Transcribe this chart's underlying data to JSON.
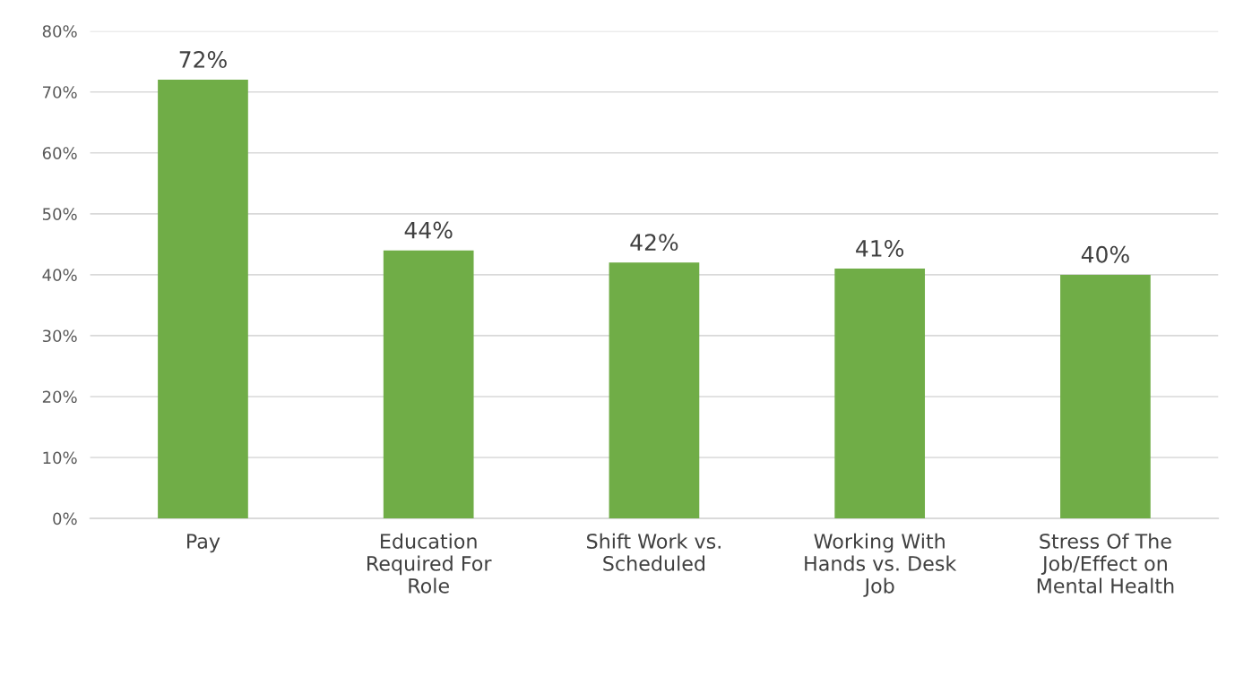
{
  "chart_data": {
    "type": "bar",
    "categories": [
      "Pay",
      "Education\nRequired For\nRole",
      "Shift Work vs.\nScheduled",
      "Working With\nHands vs. Desk\nJob",
      "Stress Of The\nJob/Effect on\nMental Health"
    ],
    "values": [
      72,
      44,
      42,
      41,
      40
    ],
    "value_labels": [
      "72%",
      "44%",
      "42%",
      "41%",
      "40%"
    ],
    "color": "#70ad47",
    "ylim": [
      0,
      80
    ],
    "yticks": [
      {
        "value": 0,
        "label": "0%"
      },
      {
        "value": 10,
        "label": "10%"
      },
      {
        "value": 20,
        "label": "20%"
      },
      {
        "value": 30,
        "label": "30%"
      },
      {
        "value": 40,
        "label": "40%"
      },
      {
        "value": 50,
        "label": "50%"
      },
      {
        "value": 60,
        "label": "60%"
      },
      {
        "value": 70,
        "label": "70%"
      },
      {
        "value": 80,
        "label": "80%"
      }
    ],
    "grid": "y"
  }
}
